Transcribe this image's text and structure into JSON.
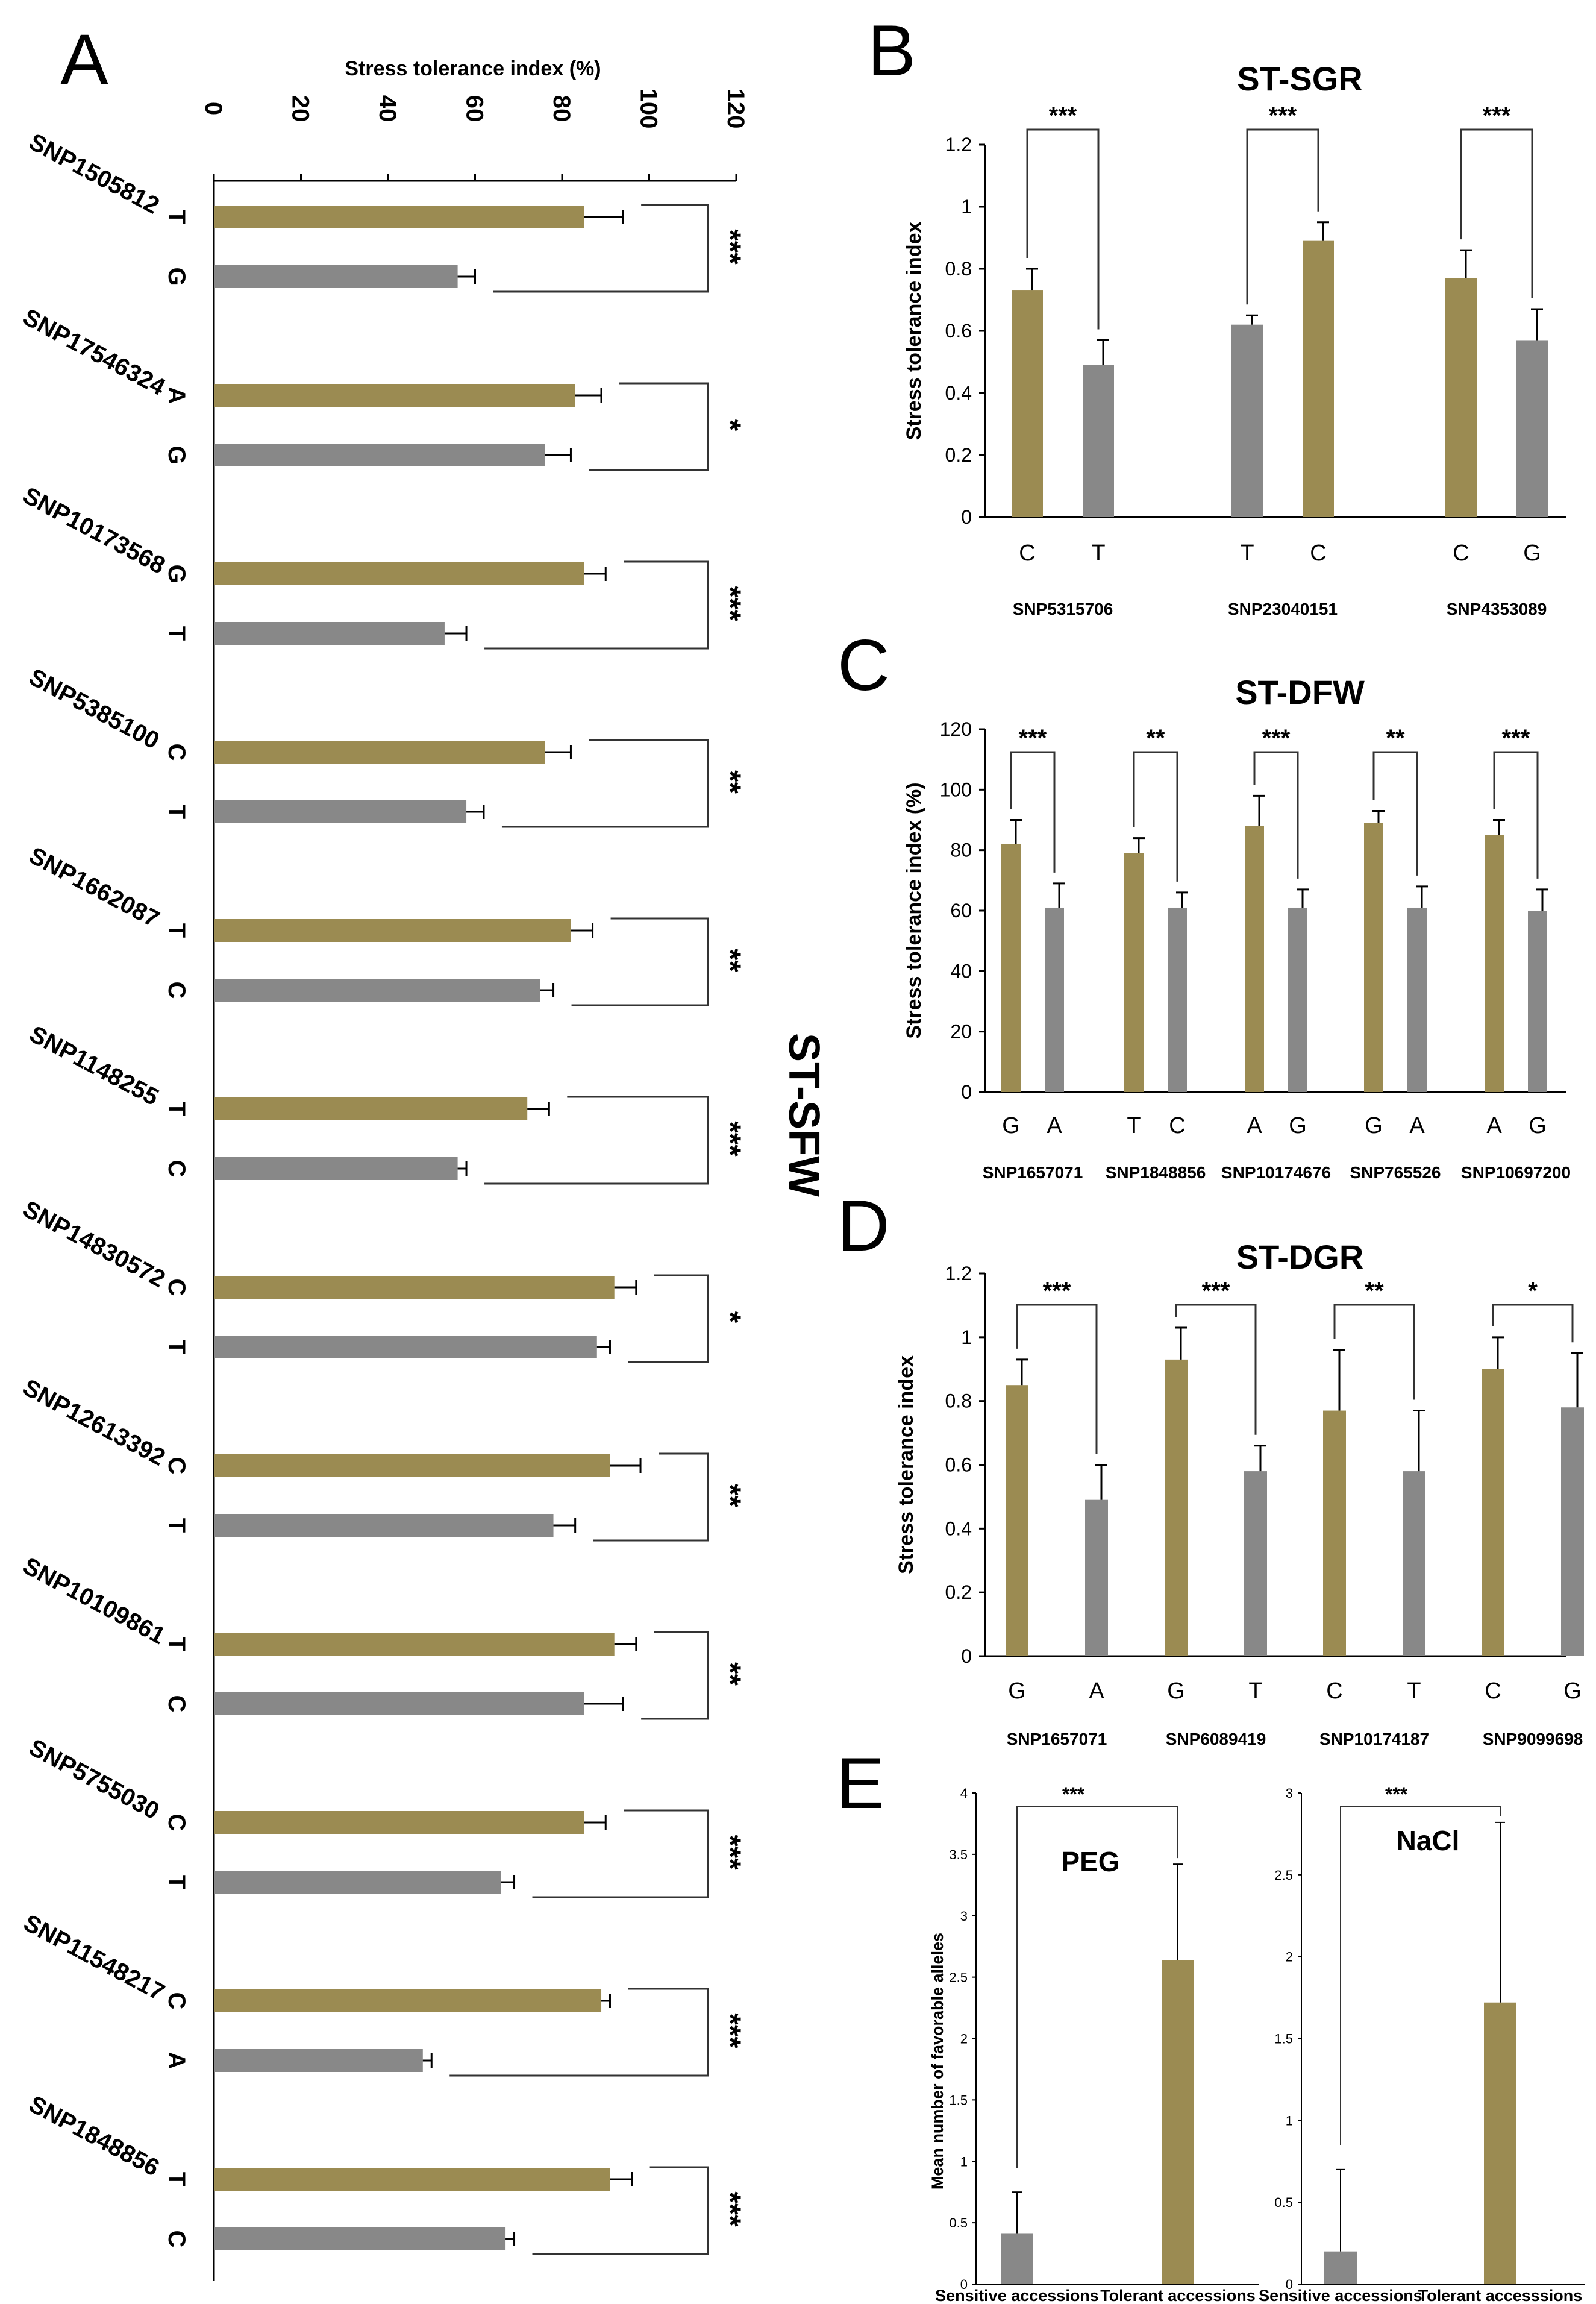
{
  "colors": {
    "tolerant": "#9b8b52",
    "sensitive": "#888888",
    "axis": "#000000",
    "bracket": "#333333"
  },
  "figure": {
    "side_title": "ST-SFW"
  },
  "chart_data": [
    {
      "id": "A",
      "letter": "A",
      "type": "bar",
      "orientation": "horizontal-rotated",
      "title": "Stress tolerance index (%)",
      "xlabel": "Stress tolerance index (%)",
      "xlim": [
        0,
        120
      ],
      "xticks": [
        "0",
        "20",
        "40",
        "60",
        "80",
        "100",
        "120"
      ],
      "groups": [
        {
          "snp": "SNP1505812",
          "alleles": [
            "T",
            "G"
          ],
          "values": [
            85,
            56
          ],
          "errors": [
            9,
            4
          ],
          "sig": "***"
        },
        {
          "snp": "SNP17546324",
          "alleles": [
            "A",
            "G"
          ],
          "values": [
            83,
            76
          ],
          "errors": [
            6,
            6
          ],
          "sig": "*"
        },
        {
          "snp": "SNP10173568",
          "alleles": [
            "G",
            "T"
          ],
          "values": [
            85,
            53
          ],
          "errors": [
            5,
            5
          ],
          "sig": "***"
        },
        {
          "snp": "SNP5385100",
          "alleles": [
            "C",
            "T"
          ],
          "values": [
            76,
            58
          ],
          "errors": [
            6,
            4
          ],
          "sig": "**"
        },
        {
          "snp": "SNP1662087",
          "alleles": [
            "T",
            "C"
          ],
          "values": [
            82,
            75
          ],
          "errors": [
            5,
            3
          ],
          "sig": "**"
        },
        {
          "snp": "SNP1148255",
          "alleles": [
            "T",
            "C"
          ],
          "values": [
            72,
            56
          ],
          "errors": [
            5,
            2
          ],
          "sig": "***"
        },
        {
          "snp": "SNP14830572",
          "alleles": [
            "C",
            "T"
          ],
          "values": [
            92,
            88
          ],
          "errors": [
            5,
            3
          ],
          "sig": "*"
        },
        {
          "snp": "SNP12613392",
          "alleles": [
            "C",
            "T"
          ],
          "values": [
            91,
            78
          ],
          "errors": [
            7,
            5
          ],
          "sig": "**"
        },
        {
          "snp": "SNP10109861",
          "alleles": [
            "T",
            "C"
          ],
          "values": [
            92,
            85
          ],
          "errors": [
            5,
            9
          ],
          "sig": "**"
        },
        {
          "snp": "SNP5755030",
          "alleles": [
            "C",
            "T"
          ],
          "values": [
            85,
            66
          ],
          "errors": [
            5,
            3
          ],
          "sig": "***"
        },
        {
          "snp": "SNP11548217",
          "alleles": [
            "C",
            "A"
          ],
          "values": [
            89,
            48
          ],
          "errors": [
            2,
            2
          ],
          "sig": "***"
        },
        {
          "snp": "SNP1848856",
          "alleles": [
            "T",
            "C"
          ],
          "values": [
            91,
            67
          ],
          "errors": [
            5,
            2
          ],
          "sig": "***"
        }
      ]
    },
    {
      "id": "B",
      "letter": "B",
      "type": "bar",
      "title": "ST-SGR",
      "ylabel": "Stress tolerance index",
      "ylim": [
        0,
        1.2
      ],
      "yticks": [
        "0",
        "0.2",
        "0.4",
        "0.6",
        "0.8",
        "1",
        "1.2"
      ],
      "groups": [
        {
          "snp": "SNP5315706",
          "alleles": [
            "C",
            "T"
          ],
          "values": [
            0.73,
            0.49
          ],
          "errors": [
            0.07,
            0.08
          ],
          "colors": [
            "tolerant",
            "sensitive"
          ],
          "sig": "***"
        },
        {
          "snp": "SNP23040151",
          "alleles": [
            "T",
            "C"
          ],
          "values": [
            0.62,
            0.89
          ],
          "errors": [
            0.03,
            0.06
          ],
          "colors": [
            "sensitive",
            "tolerant"
          ],
          "sig": "***"
        },
        {
          "snp": "SNP4353089",
          "alleles": [
            "C",
            "G"
          ],
          "values": [
            0.77,
            0.57
          ],
          "errors": [
            0.09,
            0.1
          ],
          "colors": [
            "tolerant",
            "sensitive"
          ],
          "sig": "***"
        }
      ]
    },
    {
      "id": "C",
      "letter": "C",
      "type": "bar",
      "title": "ST-DFW",
      "ylabel": "Stress tolerance index (%)",
      "ylim": [
        0,
        120
      ],
      "yticks": [
        "0",
        "20",
        "40",
        "60",
        "80",
        "100",
        "120"
      ],
      "groups": [
        {
          "snp": "SNP1657071",
          "alleles": [
            "G",
            "A"
          ],
          "values": [
            82,
            61
          ],
          "errors": [
            8,
            8
          ],
          "colors": [
            "tolerant",
            "sensitive"
          ],
          "sig": "***"
        },
        {
          "snp": "SNP1848856",
          "alleles": [
            "T",
            "C"
          ],
          "values": [
            79,
            61
          ],
          "errors": [
            5,
            5
          ],
          "colors": [
            "tolerant",
            "sensitive"
          ],
          "sig": "**"
        },
        {
          "snp": "SNP10174676",
          "alleles": [
            "A",
            "G"
          ],
          "values": [
            88,
            61
          ],
          "errors": [
            10,
            6
          ],
          "colors": [
            "tolerant",
            "sensitive"
          ],
          "sig": "***"
        },
        {
          "snp": "SNP765526",
          "alleles": [
            "G",
            "A"
          ],
          "values": [
            89,
            61
          ],
          "errors": [
            4,
            7
          ],
          "colors": [
            "tolerant",
            "sensitive"
          ],
          "sig": "**"
        },
        {
          "snp": "SNP10697200",
          "alleles": [
            "A",
            "G"
          ],
          "values": [
            85,
            60
          ],
          "errors": [
            5,
            7
          ],
          "colors": [
            "tolerant",
            "sensitive"
          ],
          "sig": "***"
        }
      ]
    },
    {
      "id": "D",
      "letter": "D",
      "type": "bar",
      "title": "ST-DGR",
      "ylabel": "Stress tolerance index",
      "ylim": [
        0,
        1.2
      ],
      "yticks": [
        "0",
        "0.2",
        "0.4",
        "0.6",
        "0.8",
        "1",
        "1.2"
      ],
      "groups": [
        {
          "snp": "SNP1657071",
          "alleles": [
            "G",
            "A"
          ],
          "values": [
            0.85,
            0.49
          ],
          "errors": [
            0.08,
            0.11
          ],
          "colors": [
            "tolerant",
            "sensitive"
          ],
          "sig": "***"
        },
        {
          "snp": "SNP6089419",
          "alleles": [
            "G",
            "T"
          ],
          "values": [
            0.93,
            0.58
          ],
          "errors": [
            0.1,
            0.08
          ],
          "colors": [
            "tolerant",
            "sensitive"
          ],
          "sig": "***"
        },
        {
          "snp": "SNP10174187",
          "alleles": [
            "C",
            "T"
          ],
          "values": [
            0.77,
            0.58
          ],
          "errors": [
            0.19,
            0.19
          ],
          "colors": [
            "tolerant",
            "sensitive"
          ],
          "sig": "**"
        },
        {
          "snp": "SNP9099698",
          "alleles": [
            "C",
            "G"
          ],
          "values": [
            0.9,
            0.78
          ],
          "errors": [
            0.1,
            0.17
          ],
          "colors": [
            "tolerant",
            "sensitive"
          ],
          "sig": "*"
        }
      ]
    },
    {
      "id": "E",
      "letter": "E",
      "type": "bar",
      "subplots": [
        {
          "label": "PEG",
          "ylim": [
            0,
            4
          ],
          "yticks": [
            "0",
            "0.5",
            "1",
            "1.5",
            "2",
            "2.5",
            "3",
            "3.5",
            "4"
          ],
          "categories": [
            "Sensitive accessions",
            "Tolerant accessions"
          ],
          "values": [
            0.41,
            2.64
          ],
          "errors": [
            0.34,
            0.78
          ],
          "sig": "***"
        },
        {
          "label": "NaCl",
          "ylim": [
            0,
            3
          ],
          "yticks": [
            "0",
            "0.5",
            "1",
            "1.5",
            "2",
            "2.5",
            "3"
          ],
          "categories": [
            "Sensitive accessions",
            "Tolerant accesssions"
          ],
          "values": [
            0.2,
            1.72
          ],
          "errors": [
            0.5,
            1.1
          ],
          "sig": "***"
        }
      ],
      "ylabel": "Mean number of favorable alleles"
    }
  ]
}
